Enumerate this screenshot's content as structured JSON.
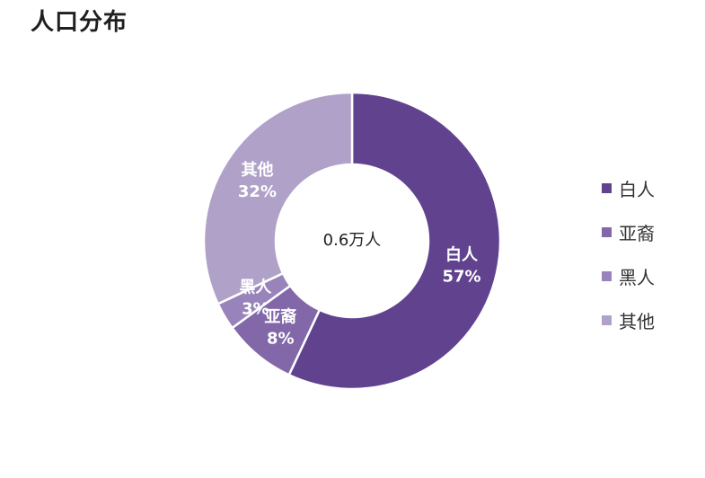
{
  "header": {
    "title": "人口分布"
  },
  "chart_data": {
    "type": "pie",
    "donut": true,
    "center_label": "0.6万人",
    "categories": [
      "白人",
      "亚裔",
      "黑人",
      "其他"
    ],
    "values": [
      57,
      8,
      3,
      32
    ],
    "percent_labels": [
      "57%",
      "8%",
      "3%",
      "32%"
    ],
    "colors": [
      "#60428f",
      "#8268a8",
      "#9883bb",
      "#b0a1c8"
    ],
    "legend_position": "right"
  }
}
